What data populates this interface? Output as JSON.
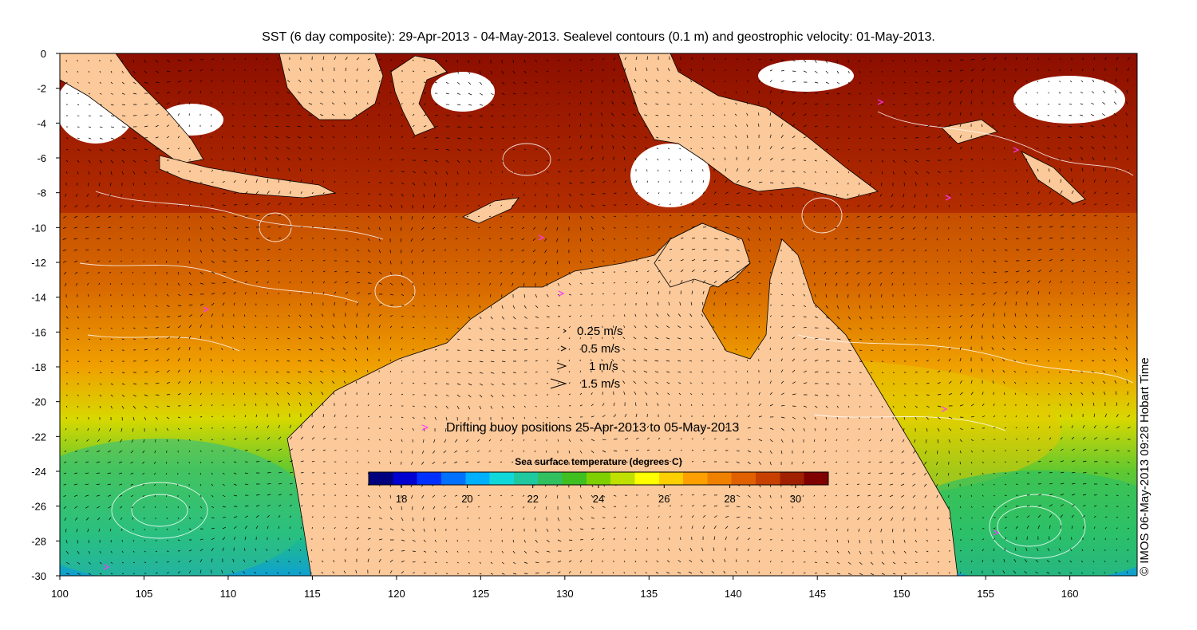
{
  "title": "SST (6 day composite): 29-Apr-2013 - 04-May-2013. Sealevel contours (0.1 m) and geostrophic velocity: 01-May-2013.",
  "credit": "© IMOS 06-May-2013 09:28 Hobart Time",
  "map": {
    "lon_range": [
      100,
      164
    ],
    "lat_range": [
      -30,
      0
    ],
    "x_ticks": [
      100,
      105,
      110,
      115,
      120,
      125,
      130,
      135,
      140,
      145,
      150,
      155,
      160
    ],
    "y_ticks": [
      0,
      -2,
      -4,
      -6,
      -8,
      -10,
      -12,
      -14,
      -16,
      -18,
      -20,
      -22,
      -24,
      -26,
      -28,
      -30
    ],
    "land_color": "#fbc99a",
    "arrow_color": "#000000",
    "contour_color": "#ffffff",
    "buoy_color": "#ff33ff"
  },
  "velocity_legend": {
    "items": [
      {
        "label": "0.25 m/s",
        "speed": 0.25
      },
      {
        "label": "0.5 m/s",
        "speed": 0.5
      },
      {
        "label": "1 m/s",
        "speed": 1
      },
      {
        "label": "1.5 m/s",
        "speed": 1.5
      }
    ]
  },
  "buoy_legend": {
    "symbol": ">",
    "label": "Drifting buoy positions 25-Apr-2013 to 05-May-2013"
  },
  "colorbar": {
    "title": "Sea surface temperature (degrees C)",
    "range": [
      17,
      31
    ],
    "ticks": [
      "18",
      "20",
      "22",
      "24",
      "26",
      "28",
      "30"
    ],
    "tick_values": [
      18,
      20,
      22,
      24,
      26,
      28,
      30
    ],
    "colors": [
      "#00007f",
      "#0000d0",
      "#0030ff",
      "#0070ff",
      "#00b0ff",
      "#10d8d8",
      "#20c8a0",
      "#30c060",
      "#40c020",
      "#80d000",
      "#c0e000",
      "#ffff00",
      "#ffd000",
      "#ffa000",
      "#f08000",
      "#e06000",
      "#c84000",
      "#a02000",
      "#800000"
    ]
  }
}
